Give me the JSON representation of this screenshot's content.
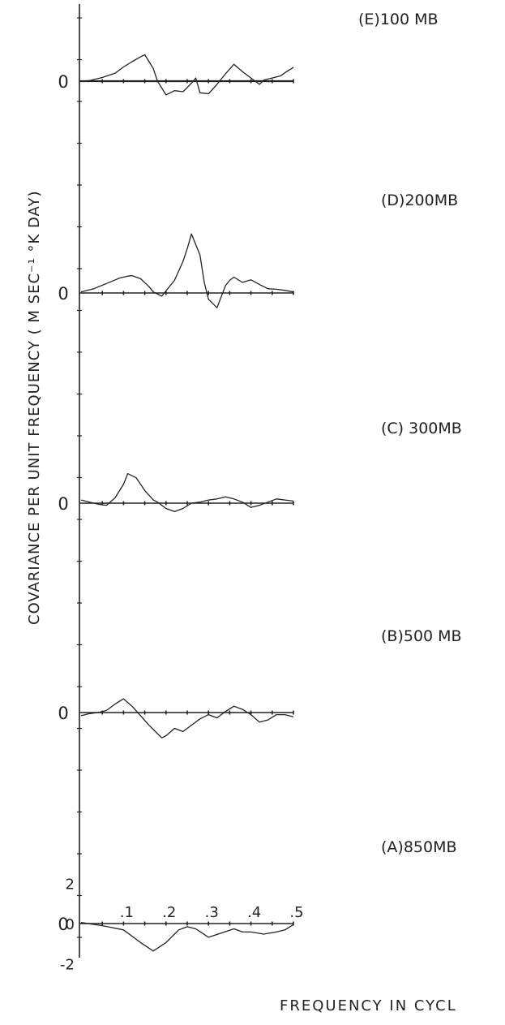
{
  "chart_data": {
    "type": "line",
    "ylabel": "COVARIANCE PER UNIT FREQUENCY ( M SEC⁻¹ °K DAY)",
    "xlabel": "FREQUENCY IN CYCL",
    "x_tick_labels": [
      ".1",
      ".2",
      ".3",
      ".4",
      ".5"
    ],
    "y_tick_labels": [
      "2",
      "0",
      "-2"
    ],
    "zero_label": "0",
    "xlim": [
      0,
      0.5
    ],
    "panels": [
      {
        "name": "(E)100 MB",
        "x": [
          0,
          0.02,
          0.05,
          0.08,
          0.1,
          0.12,
          0.14,
          0.15,
          0.17,
          0.18,
          0.2,
          0.21,
          0.22,
          0.24,
          0.25,
          0.26,
          0.27,
          0.28,
          0.3,
          0.32,
          0.34,
          0.36,
          0.38,
          0.4,
          0.42,
          0.43,
          0.44,
          0.45,
          0.47,
          0.48,
          0.5
        ],
        "values": [
          0,
          0.05,
          0.35,
          0.75,
          1.35,
          1.85,
          2.3,
          2.5,
          1.2,
          0,
          -1.3,
          -1.1,
          -0.9,
          -1.0,
          -0.6,
          -0.2,
          0.3,
          -1.1,
          -1.2,
          -0.3,
          0.7,
          1.6,
          0.9,
          0.3,
          -0.3,
          0.1,
          0.2,
          0.3,
          0.5,
          0.8,
          1.3
        ]
      },
      {
        "name": "(D)200MB",
        "x": [
          0,
          0.03,
          0.06,
          0.09,
          0.11,
          0.12,
          0.14,
          0.16,
          0.17,
          0.19,
          0.2,
          0.22,
          0.24,
          0.25,
          0.26,
          0.28,
          0.29,
          0.3,
          0.32,
          0.34,
          0.35,
          0.36,
          0.38,
          0.4,
          0.42,
          0.44,
          0.46,
          0.48,
          0.5
        ],
        "values": [
          0.1,
          0.4,
          0.9,
          1.4,
          1.6,
          1.65,
          1.35,
          0.6,
          0.1,
          -0.3,
          0.2,
          1.2,
          3.0,
          4.2,
          5.6,
          3.6,
          1.0,
          -0.6,
          -1.4,
          0.7,
          1.2,
          1.5,
          1.0,
          1.25,
          0.8,
          0.4,
          0.35,
          0.25,
          0.1
        ]
      },
      {
        "name": "(C) 300MB",
        "x": [
          0,
          0.02,
          0.04,
          0.06,
          0.08,
          0.1,
          0.11,
          0.13,
          0.15,
          0.17,
          0.18,
          0.2,
          0.22,
          0.24,
          0.26,
          0.28,
          0.3,
          0.32,
          0.34,
          0.36,
          0.38,
          0.4,
          0.42,
          0.44,
          0.46,
          0.48,
          0.5
        ],
        "values": [
          0.3,
          0.1,
          -0.1,
          -0.2,
          0.5,
          1.8,
          2.8,
          2.4,
          1.2,
          0.3,
          0.1,
          -0.5,
          -0.8,
          -0.5,
          0,
          0.1,
          0.3,
          0.4,
          0.6,
          0.4,
          0.1,
          -0.4,
          -0.2,
          0.1,
          0.4,
          0.3,
          0.2
        ]
      },
      {
        "name": "(B)500 MB",
        "x": [
          0,
          0.02,
          0.04,
          0.06,
          0.08,
          0.1,
          0.12,
          0.14,
          0.16,
          0.18,
          0.19,
          0.2,
          0.22,
          0.24,
          0.26,
          0.28,
          0.3,
          0.32,
          0.34,
          0.36,
          0.38,
          0.4,
          0.42,
          0.44,
          0.46,
          0.48,
          0.5
        ],
        "values": [
          -0.3,
          -0.1,
          0,
          0.2,
          0.8,
          1.3,
          0.6,
          -0.3,
          -1.2,
          -2.0,
          -2.4,
          -2.2,
          -1.5,
          -1.8,
          -1.2,
          -0.6,
          -0.2,
          -0.5,
          0.1,
          0.6,
          0.3,
          -0.2,
          -0.9,
          -0.7,
          -0.2,
          -0.2,
          -0.4
        ]
      },
      {
        "name": "(A)850MB",
        "x": [
          0,
          0.05,
          0.1,
          0.14,
          0.17,
          0.2,
          0.23,
          0.25,
          0.27,
          0.3,
          0.33,
          0.36,
          0.38,
          0.4,
          0.43,
          0.46,
          0.48,
          0.5
        ],
        "values": [
          0.1,
          -0.2,
          -0.6,
          -1.8,
          -2.6,
          -1.8,
          -0.6,
          -0.3,
          -0.5,
          -1.3,
          -0.9,
          -0.5,
          -0.8,
          -0.8,
          -1.0,
          -0.8,
          -0.6,
          -0.1
        ]
      }
    ]
  }
}
